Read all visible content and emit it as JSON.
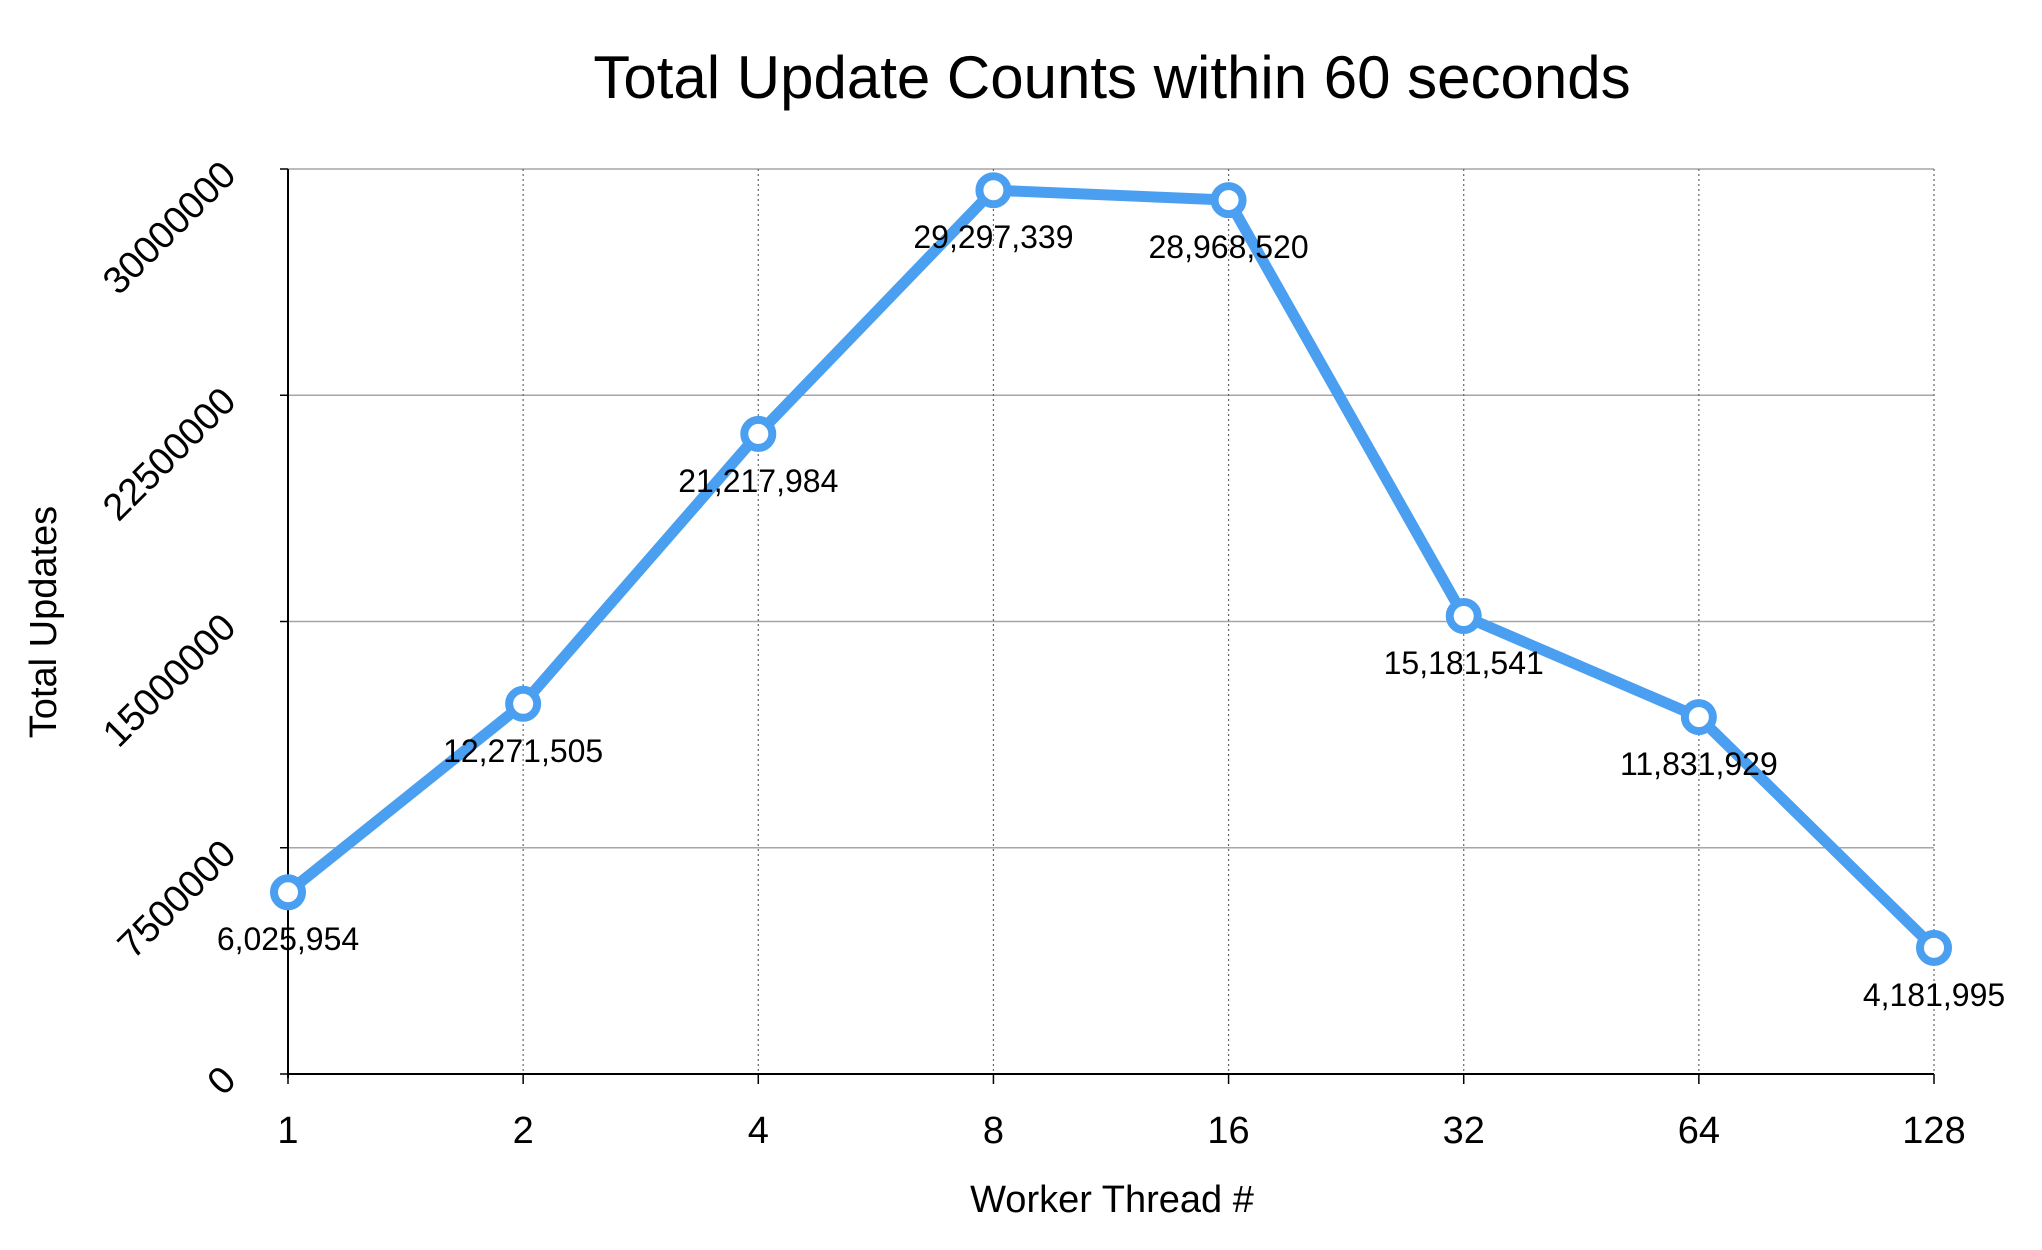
{
  "chart_data": {
    "type": "line",
    "title": "Total Update Counts within 60 seconds",
    "xlabel": "Worker Thread #",
    "ylabel": "Total Updates",
    "categories": [
      "1",
      "2",
      "4",
      "8",
      "16",
      "32",
      "64",
      "128"
    ],
    "series": [
      {
        "values": [
          6025954,
          12271505,
          21217984,
          29297339,
          28968520,
          15181541,
          11831929,
          4181995
        ],
        "labels": [
          "6,025,954",
          "12,271,505",
          "21,217,984",
          "29,297,339",
          "28,968,520",
          "15,181,541",
          "11,831,929",
          "4,181,995"
        ],
        "color": "#4a9ff0"
      }
    ],
    "yticks": [
      "0",
      "7500000",
      "15000000",
      "22500000",
      "30000000"
    ],
    "ylim": [
      0,
      30000000
    ],
    "grid": true,
    "legend": "none"
  }
}
